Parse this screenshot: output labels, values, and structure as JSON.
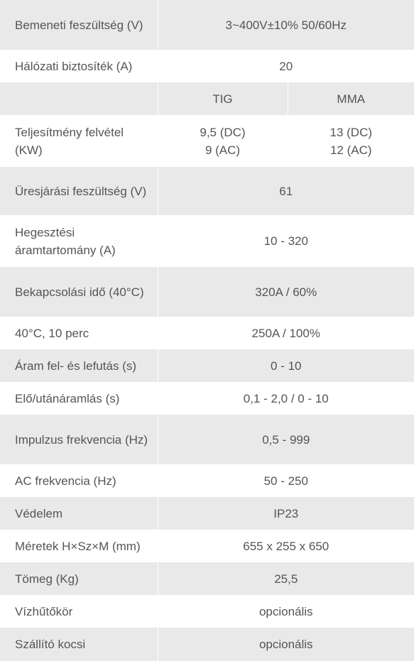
{
  "rows": [
    {
      "label": "Bemeneti feszültség (V)",
      "value": "3~400V±10% 50/60Hz"
    },
    {
      "label": "Hálózati biztosíték (A)",
      "value": "20"
    },
    {
      "label": "",
      "tig": "TIG",
      "mma": "MMA"
    },
    {
      "label": "Teljesítmény felvétel (KW)",
      "tig": "9,5 (DC)\n9 (AC)",
      "mma": "13 (DC)\n12 (AC)"
    },
    {
      "label": "Üresjárási feszültség (V)",
      "value": "61"
    },
    {
      "label": "Hegesztési áramtartomány (A)",
      "value": "10 - 320"
    },
    {
      "label": "Bekapcsolási idő (40°C)",
      "value": "320A / 60%"
    },
    {
      "label": "40°C, 10 perc",
      "value": "250A / 100%"
    },
    {
      "label": "Áram fel- és lefutás (s)",
      "value": "0 - 10"
    },
    {
      "label": "Elő/utánáramlás (s)",
      "value": "0,1 - 2,0 / 0 - 10"
    },
    {
      "label": "Impulzus frekvencia (Hz)",
      "value": "0,5 - 999"
    },
    {
      "label": "AC frekvencia (Hz)",
      "value": "50 - 250"
    },
    {
      "label": "Védelem",
      "value": "IP23"
    },
    {
      "label": "Méretek H×Sz×M (mm)",
      "value": "655 x 255 x 650"
    },
    {
      "label": "Tömeg (Kg)",
      "value": "25,5"
    },
    {
      "label": "Vízhűtőkör",
      "value": "opcionális"
    },
    {
      "label": "Szállító kocsi",
      "value": "opcionális"
    }
  ]
}
